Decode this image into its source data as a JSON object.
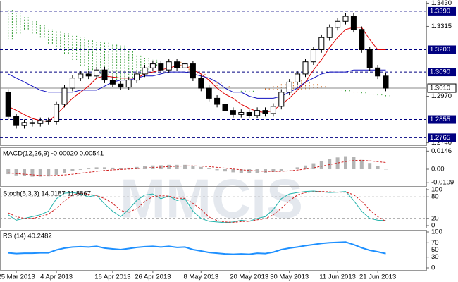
{
  "watermark": "MMCIS",
  "chart_data": [
    {
      "type": "candlestick",
      "categories": [
        null,
        "25 Mar 2013",
        null,
        null,
        null,
        null,
        "4 Apr 2013",
        null,
        null,
        null,
        null,
        null,
        null,
        "16 Apr 2013",
        null,
        null,
        null,
        null,
        "26 Apr 2013",
        null,
        null,
        null,
        null,
        null,
        "8 May 2013",
        null,
        null,
        null,
        null,
        null,
        "20 May 2013",
        null,
        null,
        null,
        null,
        "30 May 2013",
        null,
        null,
        null,
        null,
        null,
        "11 Jun 2013",
        null,
        null,
        null,
        null,
        "21 Jun 2013",
        null
      ],
      "open": [
        1.299,
        1.287,
        1.2825,
        1.284,
        1.2835,
        1.285,
        1.2845,
        1.293,
        1.301,
        1.306,
        1.308,
        1.307,
        1.31,
        1.305,
        1.303,
        1.3015,
        1.305,
        1.308,
        1.311,
        1.313,
        1.31,
        1.314,
        1.311,
        1.313,
        1.306,
        1.301,
        1.296,
        1.293,
        1.29,
        1.288,
        1.289,
        1.2875,
        1.29,
        1.2885,
        1.292,
        1.299,
        1.304,
        1.308,
        1.314,
        1.32,
        1.326,
        1.331,
        1.334,
        1.3365,
        1.33,
        1.32,
        1.311,
        1.307
      ],
      "high": [
        1.3005,
        1.2885,
        1.2855,
        1.2855,
        1.2865,
        1.2865,
        1.2945,
        1.3025,
        1.3075,
        1.3095,
        1.3095,
        1.3115,
        1.3115,
        1.3065,
        1.3045,
        1.3065,
        1.3095,
        1.3125,
        1.3145,
        1.3145,
        1.3155,
        1.3155,
        1.3145,
        1.3145,
        1.3075,
        1.3025,
        1.2975,
        1.2945,
        1.2915,
        1.2905,
        1.2905,
        1.2915,
        1.2915,
        1.2935,
        1.3005,
        1.3055,
        1.3095,
        1.3155,
        1.3215,
        1.3275,
        1.3325,
        1.3355,
        1.338,
        1.338,
        1.3315,
        1.3215,
        1.3125,
        1.3085
      ],
      "low": [
        1.2855,
        1.281,
        1.281,
        1.282,
        1.282,
        1.283,
        1.283,
        1.2915,
        1.2995,
        1.3045,
        1.3055,
        1.3055,
        1.3035,
        1.3015,
        1.3,
        1.3,
        1.3035,
        1.3065,
        1.3095,
        1.3085,
        1.3085,
        1.3095,
        1.3095,
        1.3045,
        1.2995,
        1.2945,
        1.2915,
        1.2885,
        1.2865,
        1.2865,
        1.286,
        1.286,
        1.287,
        1.287,
        1.2905,
        1.2975,
        1.3025,
        1.3065,
        1.3125,
        1.3185,
        1.3245,
        1.3295,
        1.3325,
        1.3285,
        1.3185,
        1.3095,
        1.3055,
        1.2995
      ],
      "close": [
        1.287,
        1.2825,
        1.284,
        1.2835,
        1.285,
        1.2845,
        1.293,
        1.301,
        1.306,
        1.308,
        1.307,
        1.31,
        1.305,
        1.303,
        1.3015,
        1.305,
        1.308,
        1.311,
        1.313,
        1.31,
        1.314,
        1.311,
        1.313,
        1.306,
        1.301,
        1.296,
        1.293,
        1.29,
        1.288,
        1.289,
        1.2875,
        1.29,
        1.2885,
        1.292,
        1.299,
        1.304,
        1.308,
        1.314,
        1.32,
        1.326,
        1.331,
        1.334,
        1.3365,
        1.33,
        1.32,
        1.311,
        1.307,
        1.301
      ],
      "cloud": [
        {
          "color": "#d2691e",
          "values": [
            1.325,
            1.328,
            1.33,
            1.328,
            1.326,
            1.323,
            1.32,
            1.318,
            1.315,
            1.312,
            1.31,
            1.308,
            1.306,
            1.305,
            1.305,
            1.306,
            1.308,
            1.31,
            1.312,
            1.314,
            1.315,
            1.314,
            1.312,
            1.31,
            1.308,
            1.306,
            1.304,
            1.302,
            1.3,
            1.299,
            1.299,
            1.3,
            1.301,
            1.302,
            1.303,
            1.304,
            1.305,
            1.304,
            1.303,
            1.302,
            1.301,
            1.3,
            1.2995,
            1.299,
            1.2985,
            1.298,
            1.2975,
            1.297
          ]
        },
        {
          "color": "#2e9a2e",
          "values": [
            1.34,
            1.338,
            1.336,
            1.334,
            1.332,
            1.33,
            1.329,
            1.328,
            1.327,
            1.326,
            1.325,
            1.324,
            1.324,
            1.323,
            1.322,
            1.32,
            1.318,
            1.316,
            1.315,
            1.314,
            1.313,
            1.311,
            1.309,
            1.307,
            1.305,
            1.303,
            1.302,
            1.301,
            1.3,
            1.3,
            1.3,
            1.3,
            1.3,
            1.3,
            1.3,
            1.3,
            1.3,
            1.3,
            1.301,
            1.301,
            1.301,
            1.3,
            1.3,
            1.299,
            1.299,
            1.298,
            1.298,
            1.2975
          ]
        }
      ],
      "series": [
        {
          "color": "#e00000",
          "values": [
            1.292,
            1.29,
            1.288,
            1.286,
            1.285,
            1.2845,
            1.288,
            1.292,
            1.296,
            1.299,
            1.302,
            1.306,
            1.307,
            1.3065,
            1.306,
            1.306,
            1.306,
            1.308,
            1.309,
            1.31,
            1.311,
            1.312,
            1.312,
            1.31,
            1.308,
            1.305,
            1.301,
            1.298,
            1.296,
            1.293,
            1.291,
            1.2895,
            1.289,
            1.29,
            1.293,
            1.296,
            1.3,
            1.304,
            1.31,
            1.315,
            1.321,
            1.326,
            1.33,
            1.331,
            1.331,
            1.325,
            1.32,
            1.32
          ]
        },
        {
          "color": "#1010c0",
          "values": [
            1.308,
            1.306,
            1.304,
            1.302,
            1.3,
            1.299,
            1.299,
            1.299,
            1.299,
            1.3,
            1.3,
            1.3,
            1.302,
            1.304,
            1.305,
            1.305,
            1.306,
            1.307,
            1.307,
            1.308,
            1.309,
            1.309,
            1.309,
            1.308,
            1.307,
            1.306,
            1.304,
            1.301,
            1.299,
            1.299,
            1.297,
            1.296,
            1.296,
            1.296,
            1.297,
            1.299,
            1.301,
            1.304,
            1.306,
            1.308,
            1.309,
            1.309,
            1.309,
            1.31,
            1.31,
            1.31,
            1.31,
            1.31
          ]
        }
      ],
      "levels": [
        {
          "value": 1.339,
          "label": "1.3390"
        },
        {
          "value": 1.32,
          "label": "1.3200"
        },
        {
          "value": 1.309,
          "label": "1.3090"
        },
        {
          "value": 1.2855,
          "label": "1.2855"
        },
        {
          "value": 1.2765,
          "label": "1.2765"
        }
      ],
      "current": {
        "value": 1.301,
        "label": "1.3010"
      },
      "ylim": [
        1.2735,
        1.3435
      ],
      "yticks": [
        {
          "value": 1.343,
          "label": "1.3430"
        },
        {
          "value": 1.3315,
          "label": "1.3315"
        },
        {
          "value": 1.297,
          "label": "1.2970"
        },
        {
          "value": 1.274,
          "label": "1.2740"
        }
      ]
    },
    {
      "type": "bar",
      "title": "MACD(12,26,9) -0.00020 0.00541",
      "color": "#b4b4b4",
      "values": [
        -0.004,
        -0.005,
        -0.0055,
        -0.006,
        -0.006,
        -0.0058,
        -0.0045,
        -0.003,
        -0.0015,
        -0.0005,
        0.0005,
        0.0015,
        0.0015,
        0.0012,
        0.001,
        0.0012,
        0.0018,
        0.0025,
        0.003,
        0.0032,
        0.0035,
        0.0035,
        0.0035,
        0.0028,
        0.0018,
        0.0005,
        -0.0008,
        -0.0018,
        -0.0025,
        -0.003,
        -0.0032,
        -0.003,
        -0.0028,
        -0.0022,
        -0.0012,
        0.0,
        0.0015,
        0.003,
        0.0048,
        0.0065,
        0.0082,
        0.0095,
        0.0105,
        0.01,
        0.0075,
        0.005,
        0.0025,
        -0.0002
      ],
      "series": [
        {
          "color": "#d02020",
          "dash": true,
          "values": [
            -0.003,
            -0.0035,
            -0.004,
            -0.0045,
            -0.005,
            -0.0052,
            -0.005,
            -0.0046,
            -0.004,
            -0.0033,
            -0.0025,
            -0.0017,
            -0.001,
            -0.0005,
            -0.0002,
            0.0001,
            0.0005,
            0.0009,
            0.0013,
            0.0017,
            0.0021,
            0.0024,
            0.0026,
            0.0027,
            0.0025,
            0.0021,
            0.0015,
            0.0008,
            0.0002,
            -0.0005,
            -0.001,
            -0.0014,
            -0.0017,
            -0.0018,
            -0.0017,
            -0.0013,
            -0.0007,
            0.0001,
            0.0011,
            0.0024,
            0.0037,
            0.005,
            0.0062,
            0.007,
            0.0072,
            0.0068,
            0.0061,
            0.0054
          ]
        }
      ],
      "ylim": [
        -0.0125,
        0.0165
      ],
      "yticks": [
        0.0146,
        {
          "value": 0,
          "label": "0.00"
        },
        -0.0109
      ]
    },
    {
      "type": "line",
      "title": "Stoch(5,3,3) 14.0187 11.8867",
      "series": [
        {
          "color": "#20b2aa",
          "values": [
            30,
            15,
            20,
            25,
            30,
            40,
            75,
            90,
            92,
            88,
            80,
            85,
            60,
            40,
            25,
            45,
            70,
            85,
            88,
            75,
            82,
            70,
            75,
            40,
            20,
            12,
            10,
            8,
            10,
            15,
            12,
            20,
            25,
            45,
            75,
            88,
            92,
            95,
            96,
            94,
            92,
            93,
            95,
            70,
            40,
            20,
            15,
            14
          ]
        },
        {
          "color": "#d02020",
          "dash": true,
          "values": [
            35,
            25,
            20,
            20,
            25,
            32,
            48,
            68,
            85,
            90,
            87,
            84,
            75,
            62,
            42,
            37,
            47,
            67,
            81,
            83,
            82,
            76,
            76,
            62,
            45,
            24,
            14,
            10,
            9,
            11,
            12,
            16,
            19,
            30,
            48,
            69,
            85,
            92,
            94,
            95,
            94,
            93,
            93,
            86,
            68,
            43,
            25,
            12
          ]
        }
      ],
      "levels": [
        80,
        20
      ],
      "ylim": [
        0,
        100
      ],
      "yticks": [
        100,
        80,
        20,
        0
      ]
    },
    {
      "type": "line",
      "title": "RSI(14) 40.2482",
      "series": [
        {
          "color": "#1e90ff",
          "width": 2,
          "values": [
            42,
            40,
            41,
            41,
            42,
            42,
            50,
            55,
            58,
            59,
            58,
            60,
            55,
            53,
            51,
            54,
            57,
            59,
            60,
            58,
            60,
            57,
            58,
            51,
            47,
            43,
            41,
            39,
            38,
            39,
            38,
            41,
            40,
            44,
            51,
            55,
            58,
            62,
            65,
            68,
            70,
            71,
            72,
            65,
            56,
            49,
            45,
            40
          ]
        }
      ],
      "ylim": [
        0,
        100
      ],
      "yticks": [
        100,
        70,
        50,
        30,
        0
      ]
    }
  ]
}
